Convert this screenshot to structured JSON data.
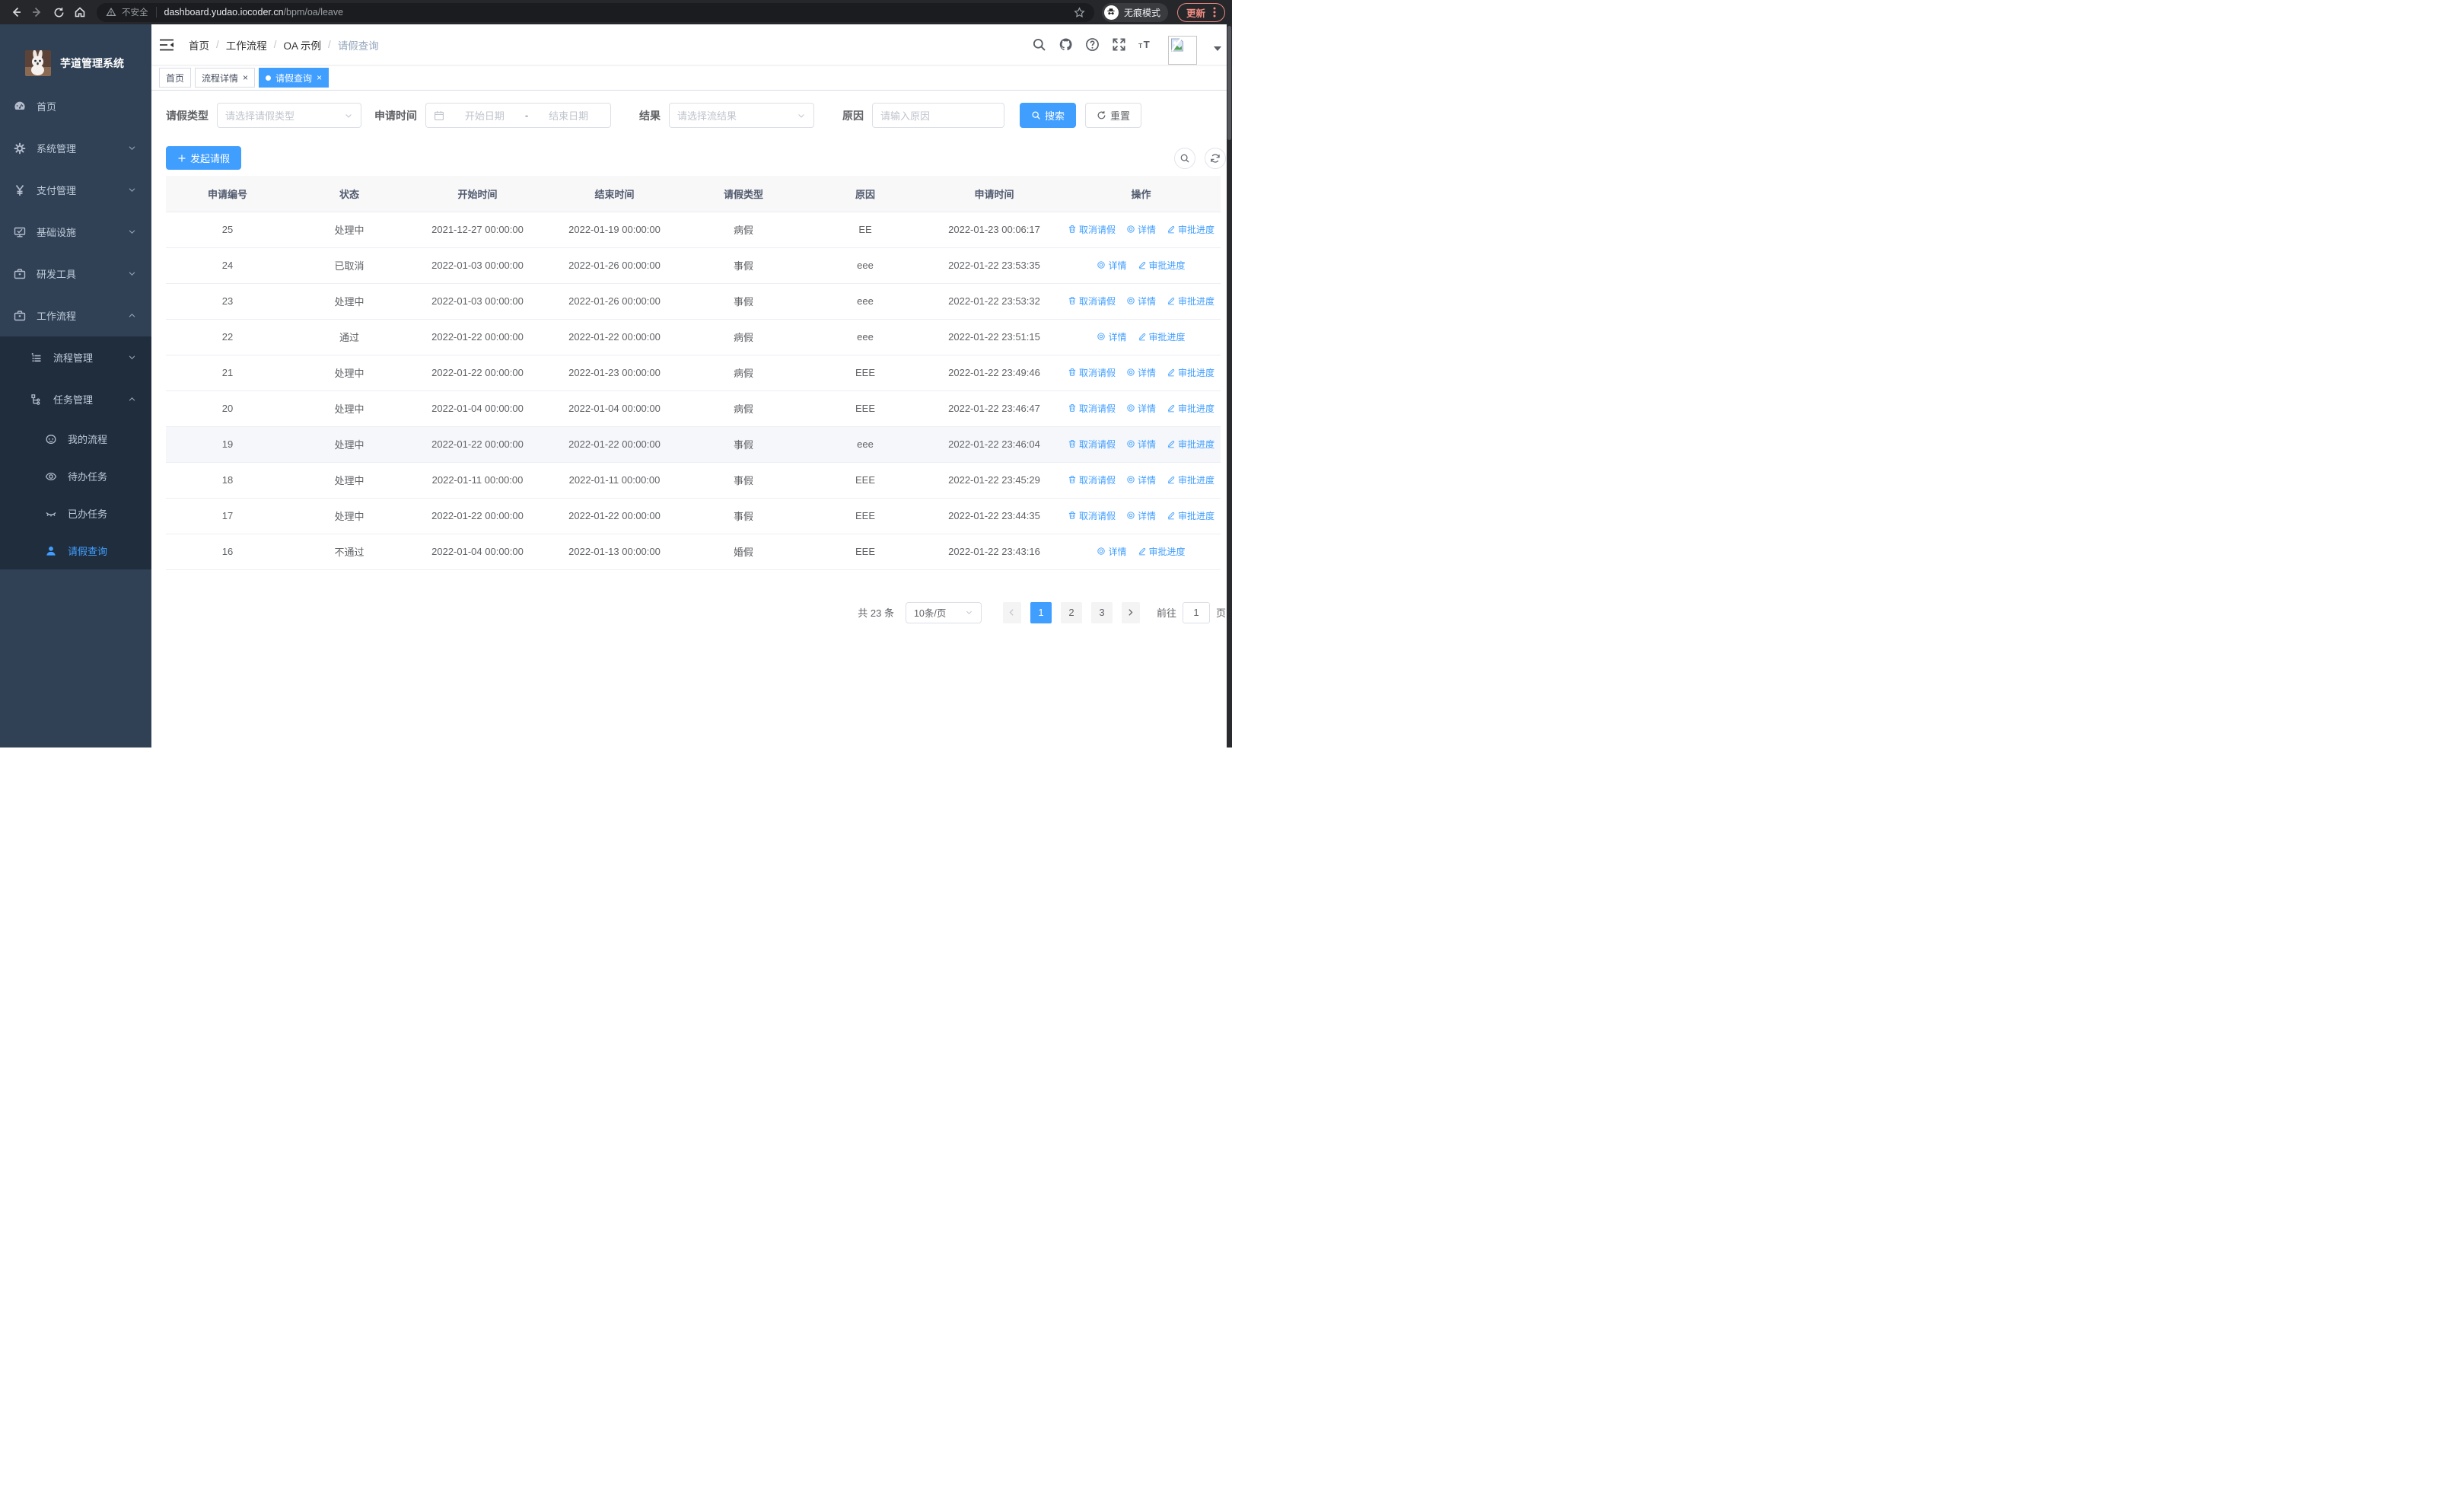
{
  "browser": {
    "security_label": "不安全",
    "url_host": "dashboard.yudao.iocoder.cn",
    "url_path": "/bpm/oa/leave",
    "incognito_label": "无痕模式",
    "update_label": "更新"
  },
  "sidebar": {
    "title": "芋道管理系统",
    "items": [
      {
        "label": "首页"
      },
      {
        "label": "系统管理"
      },
      {
        "label": "支付管理"
      },
      {
        "label": "基础设施"
      },
      {
        "label": "研发工具"
      },
      {
        "label": "工作流程"
      },
      {
        "label": "流程管理"
      },
      {
        "label": "任务管理"
      },
      {
        "label": "我的流程"
      },
      {
        "label": "待办任务"
      },
      {
        "label": "已办任务"
      },
      {
        "label": "请假查询"
      }
    ]
  },
  "breadcrumb": {
    "items": [
      "首页",
      "工作流程",
      "OA 示例",
      "请假查询"
    ]
  },
  "tabs": [
    {
      "label": "首页"
    },
    {
      "label": "流程详情"
    },
    {
      "label": "请假查询"
    }
  ],
  "filters": {
    "leave_type_label": "请假类型",
    "leave_type_placeholder": "请选择请假类型",
    "apply_time_label": "申请时间",
    "start_placeholder": "开始日期",
    "range_separator": "-",
    "end_placeholder": "结束日期",
    "result_label": "结果",
    "result_placeholder": "请选择流结果",
    "reason_label": "原因",
    "reason_placeholder": "请输入原因",
    "search_label": "搜索",
    "reset_label": "重置"
  },
  "toolbar": {
    "create_label": "发起请假"
  },
  "table": {
    "columns": [
      "申请编号",
      "状态",
      "开始时间",
      "结束时间",
      "请假类型",
      "原因",
      "申请时间",
      "操作"
    ],
    "action_labels": {
      "cancel": "取消请假",
      "detail": "详情",
      "progress": "审批进度"
    },
    "rows": [
      {
        "id": "25",
        "status": "处理中",
        "start": "2021-12-27 00:00:00",
        "end": "2022-01-19 00:00:00",
        "type": "病假",
        "reason": "EE",
        "applied": "2022-01-23 00:06:17",
        "actions": [
          "cancel",
          "detail",
          "progress"
        ]
      },
      {
        "id": "24",
        "status": "已取消",
        "start": "2022-01-03 00:00:00",
        "end": "2022-01-26 00:00:00",
        "type": "事假",
        "reason": "eee",
        "applied": "2022-01-22 23:53:35",
        "actions": [
          "detail",
          "progress"
        ]
      },
      {
        "id": "23",
        "status": "处理中",
        "start": "2022-01-03 00:00:00",
        "end": "2022-01-26 00:00:00",
        "type": "事假",
        "reason": "eee",
        "applied": "2022-01-22 23:53:32",
        "actions": [
          "cancel",
          "detail",
          "progress"
        ]
      },
      {
        "id": "22",
        "status": "通过",
        "start": "2022-01-22 00:00:00",
        "end": "2022-01-22 00:00:00",
        "type": "病假",
        "reason": "eee",
        "applied": "2022-01-22 23:51:15",
        "actions": [
          "detail",
          "progress"
        ]
      },
      {
        "id": "21",
        "status": "处理中",
        "start": "2022-01-22 00:00:00",
        "end": "2022-01-23 00:00:00",
        "type": "病假",
        "reason": "EEE",
        "applied": "2022-01-22 23:49:46",
        "actions": [
          "cancel",
          "detail",
          "progress"
        ]
      },
      {
        "id": "20",
        "status": "处理中",
        "start": "2022-01-04 00:00:00",
        "end": "2022-01-04 00:00:00",
        "type": "病假",
        "reason": "EEE",
        "applied": "2022-01-22 23:46:47",
        "actions": [
          "cancel",
          "detail",
          "progress"
        ]
      },
      {
        "id": "19",
        "status": "处理中",
        "start": "2022-01-22 00:00:00",
        "end": "2022-01-22 00:00:00",
        "type": "事假",
        "reason": "eee",
        "applied": "2022-01-22 23:46:04",
        "actions": [
          "cancel",
          "detail",
          "progress"
        ],
        "highlight": true
      },
      {
        "id": "18",
        "status": "处理中",
        "start": "2022-01-11 00:00:00",
        "end": "2022-01-11 00:00:00",
        "type": "事假",
        "reason": "EEE",
        "applied": "2022-01-22 23:45:29",
        "actions": [
          "cancel",
          "detail",
          "progress"
        ]
      },
      {
        "id": "17",
        "status": "处理中",
        "start": "2022-01-22 00:00:00",
        "end": "2022-01-22 00:00:00",
        "type": "事假",
        "reason": "EEE",
        "applied": "2022-01-22 23:44:35",
        "actions": [
          "cancel",
          "detail",
          "progress"
        ]
      },
      {
        "id": "16",
        "status": "不通过",
        "start": "2022-01-04 00:00:00",
        "end": "2022-01-13 00:00:00",
        "type": "婚假",
        "reason": "EEE",
        "applied": "2022-01-22 23:43:16",
        "actions": [
          "detail",
          "progress"
        ]
      }
    ]
  },
  "pagination": {
    "total_label": "共 23 条",
    "page_size_label": "10条/页",
    "pages": [
      "1",
      "2",
      "3"
    ],
    "active_page": "1",
    "goto_label": "前往",
    "goto_value": "1",
    "goto_suffix": "页"
  },
  "colors": {
    "accent": "#409eff",
    "sidebar_bg": "#304156",
    "submenu_bg": "#1f2d3d"
  }
}
